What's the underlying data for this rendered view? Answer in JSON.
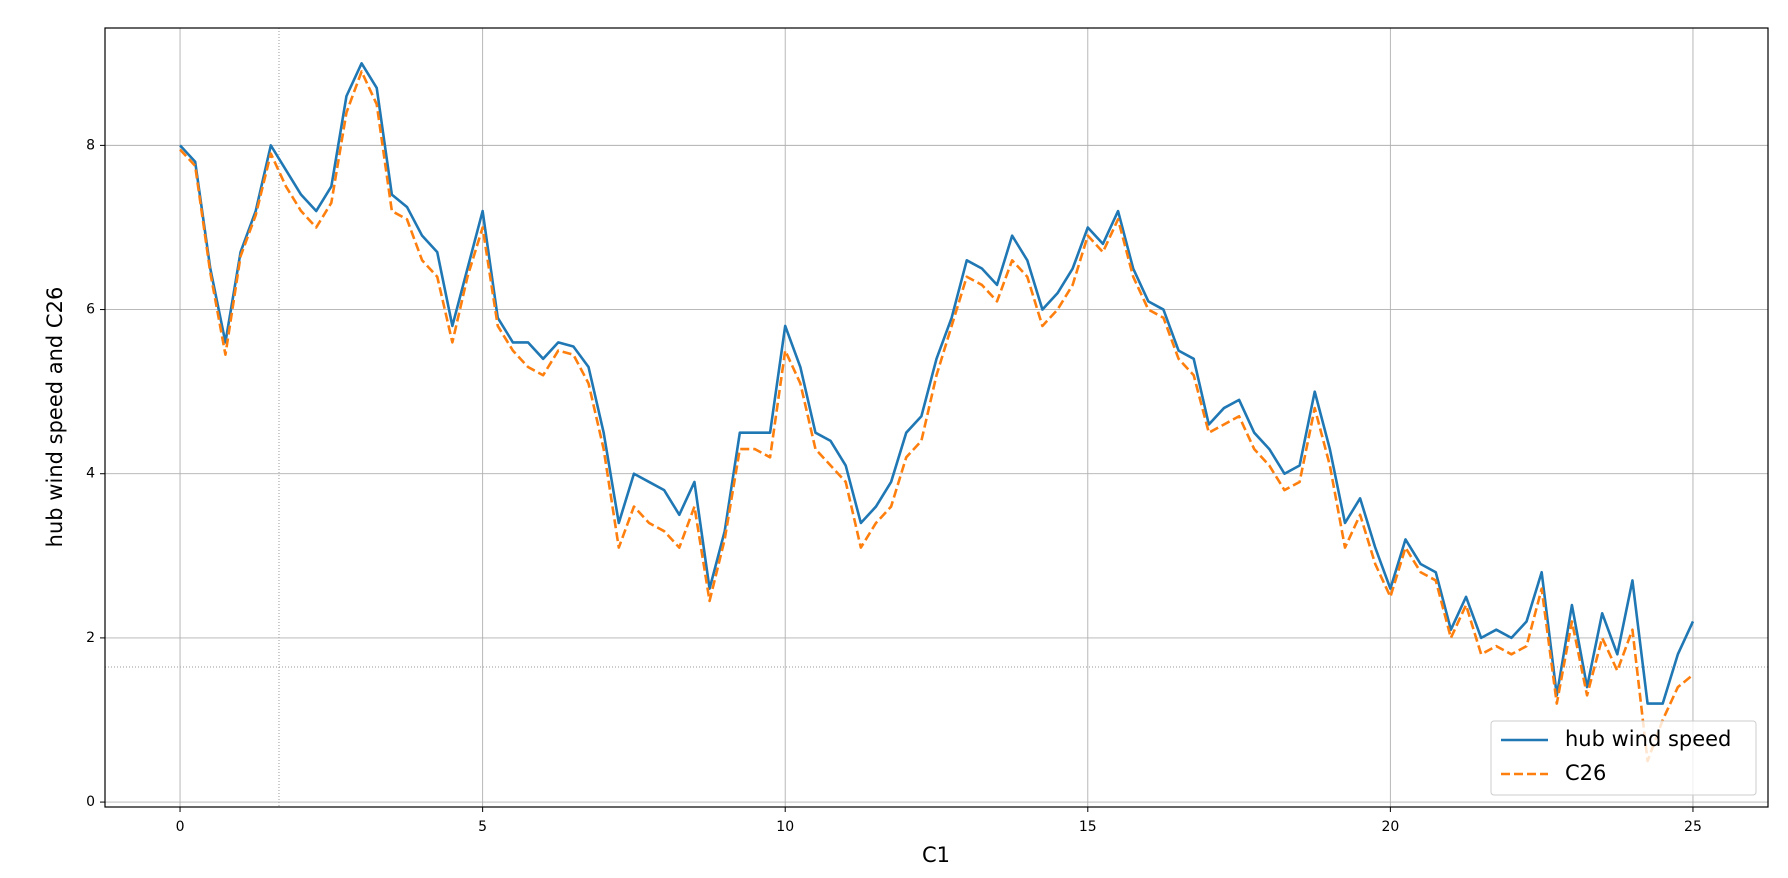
{
  "chart_data": {
    "type": "line",
    "xlabel": "C1",
    "ylabel": "hub wind speed and C26",
    "x": [
      0,
      0.25,
      0.5,
      0.75,
      1,
      1.25,
      1.5,
      1.75,
      2,
      2.25,
      2.5,
      2.75,
      3,
      3.25,
      3.5,
      3.75,
      4,
      4.25,
      4.5,
      4.75,
      5,
      5.25,
      5.5,
      5.75,
      6,
      6.25,
      6.5,
      6.75,
      7,
      7.25,
      7.5,
      7.75,
      8,
      8.25,
      8.5,
      8.75,
      9,
      9.25,
      9.5,
      9.75,
      10,
      10.25,
      10.5,
      10.75,
      11,
      11.25,
      11.5,
      11.75,
      12,
      12.25,
      12.5,
      12.75,
      13,
      13.25,
      13.5,
      13.75,
      14,
      14.25,
      14.5,
      14.75,
      15,
      15.25,
      15.5,
      15.75,
      16,
      16.25,
      16.5,
      16.75,
      17,
      17.25,
      17.5,
      17.75,
      18,
      18.25,
      18.5,
      18.75,
      19,
      19.25,
      19.5,
      19.75,
      20,
      20.25,
      20.5,
      20.75,
      21,
      21.25,
      21.5,
      21.75,
      22,
      22.25,
      22.5,
      22.75,
      23,
      23.25,
      23.5,
      23.75,
      24,
      24.25,
      24.5,
      24.75,
      25
    ],
    "series": [
      {
        "name": "hub wind speed",
        "color": "#1f77b4",
        "dash": false,
        "values": [
          8.0,
          7.8,
          6.5,
          5.6,
          6.7,
          7.2,
          8.0,
          7.7,
          7.4,
          7.2,
          7.5,
          8.6,
          9.0,
          8.7,
          7.4,
          7.25,
          6.9,
          6.7,
          5.8,
          6.5,
          7.2,
          5.9,
          5.6,
          5.6,
          5.4,
          5.6,
          5.55,
          5.3,
          4.5,
          3.4,
          4.0,
          3.9,
          3.8,
          3.5,
          3.9,
          2.6,
          3.3,
          4.5,
          4.5,
          4.5,
          5.8,
          5.3,
          4.5,
          4.4,
          4.1,
          3.4,
          3.6,
          3.9,
          4.5,
          4.7,
          5.4,
          5.9,
          6.6,
          6.5,
          6.3,
          6.9,
          6.6,
          6.0,
          6.2,
          6.5,
          7.0,
          6.8,
          7.2,
          6.5,
          6.1,
          6.0,
          5.5,
          5.4,
          4.6,
          4.8,
          4.9,
          4.5,
          4.3,
          4.0,
          4.1,
          5.0,
          4.3,
          3.4,
          3.7,
          3.1,
          2.6,
          3.2,
          2.9,
          2.8,
          2.1,
          2.5,
          2.0,
          2.1,
          2.0,
          2.2,
          2.8,
          1.3,
          2.4,
          1.4,
          2.3,
          1.8,
          2.7,
          1.2,
          1.2,
          1.8,
          2.2
        ]
      },
      {
        "name": "C26",
        "color": "#ff7f0e",
        "dash": true,
        "values": [
          7.95,
          7.75,
          6.45,
          5.45,
          6.65,
          7.15,
          7.9,
          7.5,
          7.2,
          7.0,
          7.3,
          8.4,
          8.9,
          8.5,
          7.2,
          7.1,
          6.6,
          6.4,
          5.6,
          6.4,
          7.0,
          5.8,
          5.5,
          5.3,
          5.2,
          5.5,
          5.45,
          5.1,
          4.3,
          3.1,
          3.6,
          3.4,
          3.3,
          3.1,
          3.6,
          2.45,
          3.2,
          4.3,
          4.3,
          4.2,
          5.5,
          5.1,
          4.3,
          4.1,
          3.9,
          3.1,
          3.4,
          3.6,
          4.2,
          4.4,
          5.2,
          5.8,
          6.4,
          6.3,
          6.1,
          6.6,
          6.4,
          5.8,
          6.0,
          6.3,
          6.9,
          6.7,
          7.1,
          6.4,
          6.0,
          5.9,
          5.4,
          5.2,
          4.5,
          4.6,
          4.7,
          4.3,
          4.1,
          3.8,
          3.9,
          4.8,
          4.1,
          3.1,
          3.5,
          2.9,
          2.5,
          3.1,
          2.8,
          2.7,
          2.0,
          2.4,
          1.8,
          1.9,
          1.8,
          1.9,
          2.6,
          1.2,
          2.2,
          1.3,
          2.0,
          1.6,
          2.1,
          0.5,
          1.0,
          1.4,
          1.55
        ]
      }
    ],
    "xlim": [
      -1.24,
      26.24
    ],
    "ylim": [
      -0.06,
      9.43
    ],
    "xticks": [
      0,
      5,
      10,
      15,
      20,
      25
    ],
    "yticks": [
      0,
      2,
      4,
      6,
      8
    ],
    "grid": true,
    "legend": "lower right"
  }
}
